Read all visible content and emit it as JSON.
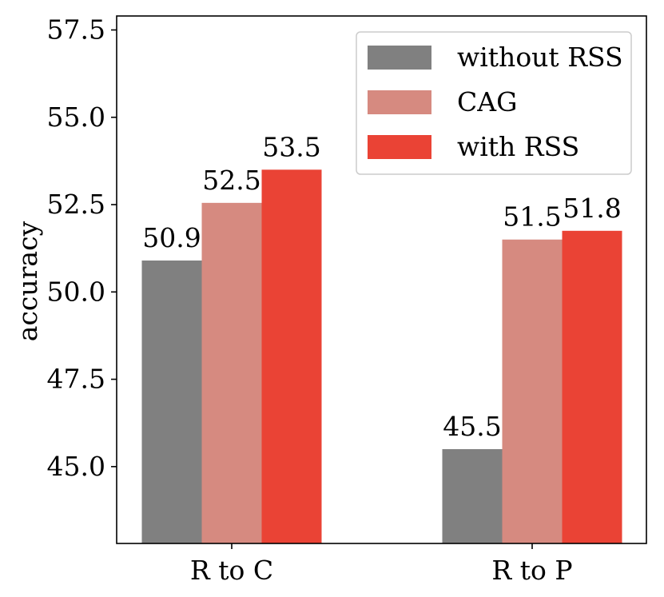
{
  "colors": {
    "without_rss": "#808080",
    "cag": "#d68a80",
    "with_rss": "#ea4335",
    "axis": "#000000",
    "legend_border": "#cccccc"
  },
  "chart_data": {
    "type": "bar",
    "title": "",
    "xlabel": "",
    "ylabel": "accuracy",
    "categories": [
      "R to C",
      "R to P"
    ],
    "series": [
      {
        "name": "without RSS",
        "color_key": "without_rss",
        "values": [
          50.9,
          45.5
        ],
        "labels": [
          "50.9",
          "45.5"
        ]
      },
      {
        "name": "CAG",
        "color_key": "cag",
        "values": [
          52.55,
          51.5
        ],
        "labels": [
          "52.5",
          "51.5"
        ]
      },
      {
        "name": "with RSS",
        "color_key": "with_rss",
        "values": [
          53.5,
          51.75
        ],
        "labels": [
          "53.5",
          "51.8"
        ]
      }
    ],
    "ylim": [
      42.8,
      57.9
    ],
    "yticks": [
      45.0,
      47.5,
      50.0,
      52.5,
      55.0,
      57.5
    ],
    "ytick_labels": [
      "45.0",
      "47.5",
      "50.0",
      "52.5",
      "55.0",
      "57.5"
    ],
    "grid": false,
    "legend_position": "top-right"
  }
}
